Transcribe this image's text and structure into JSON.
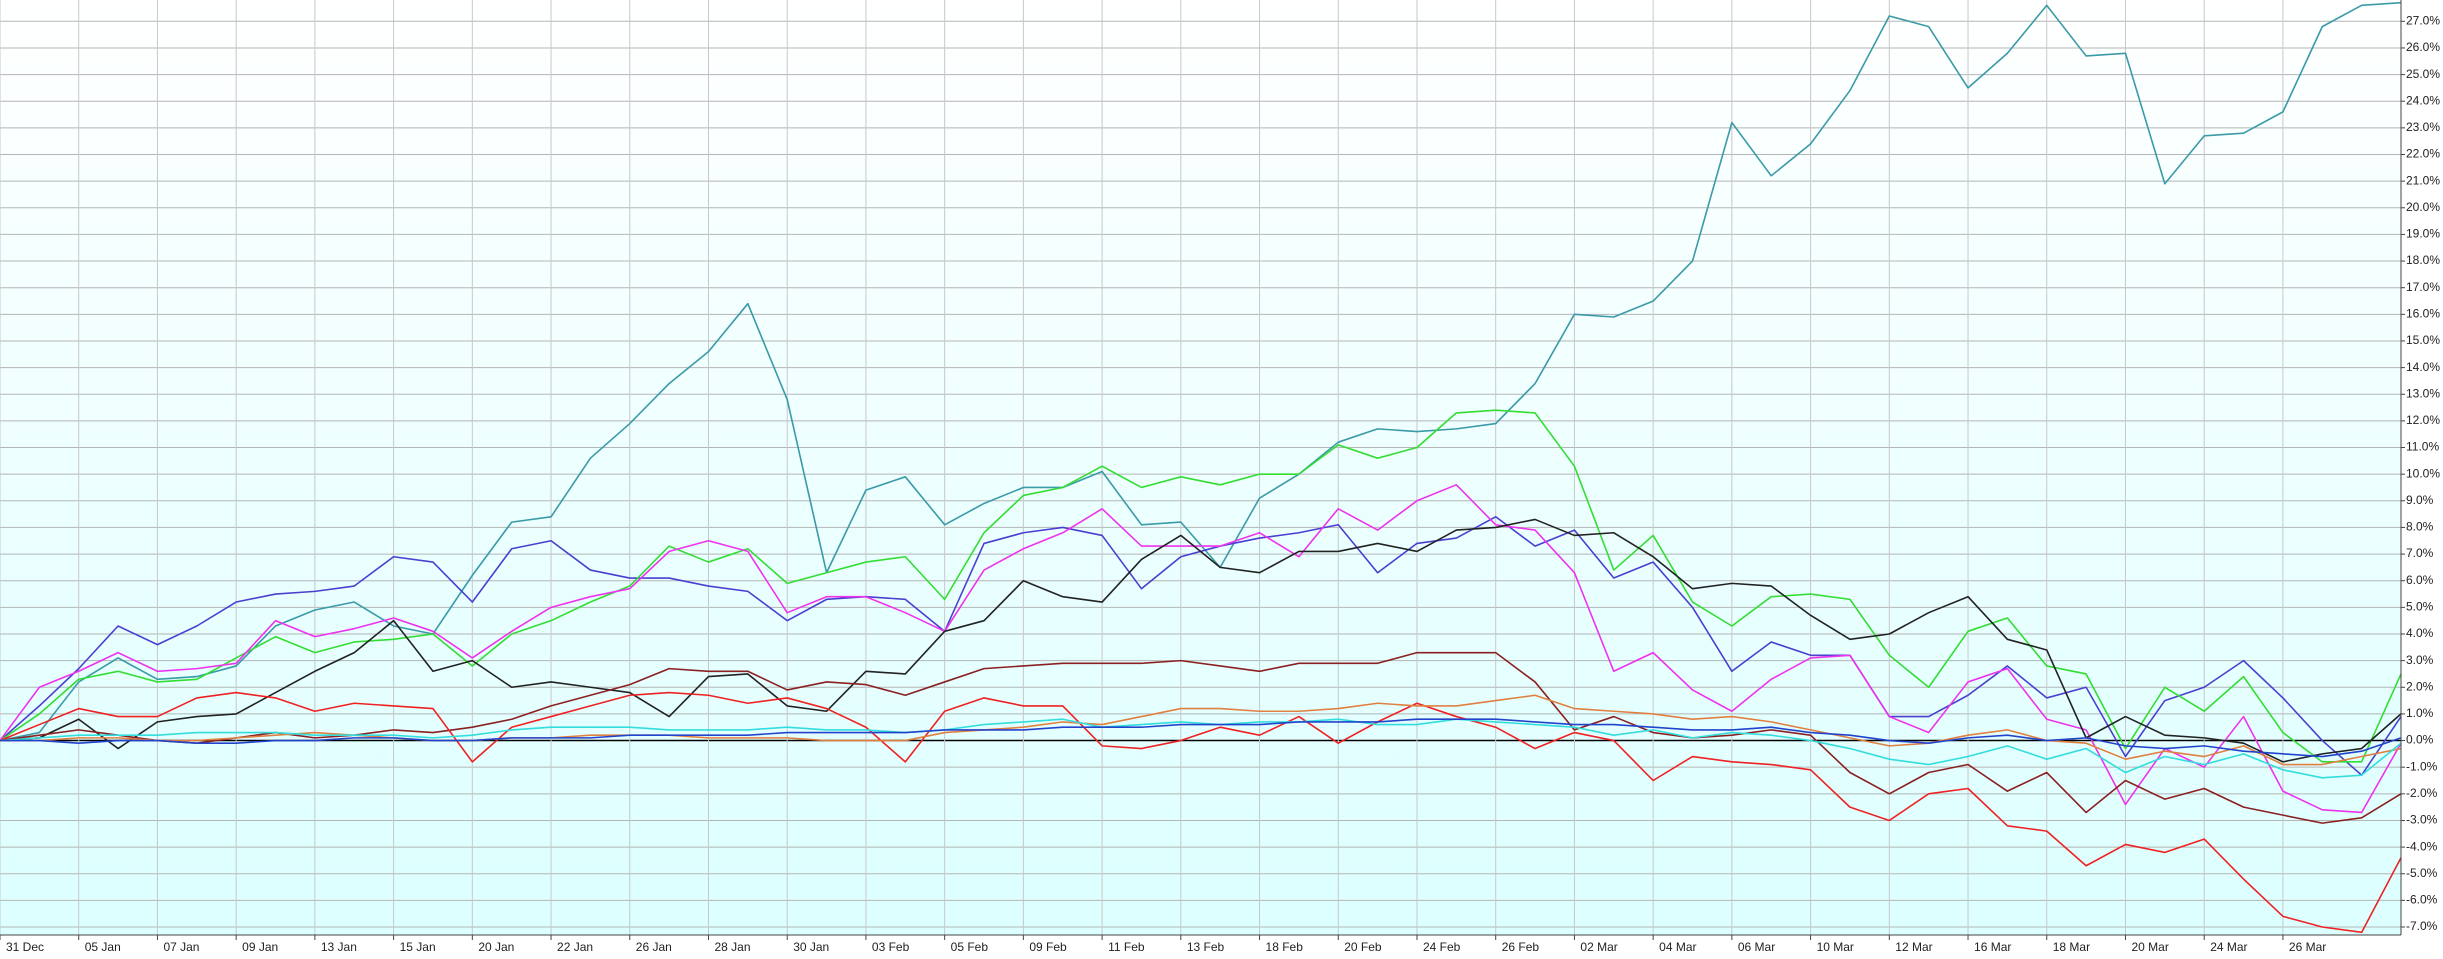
{
  "chart_data": {
    "type": "line",
    "categories": [
      "31 Dec",
      null,
      "05 Jan",
      null,
      "07 Jan",
      null,
      "09 Jan",
      null,
      "13 Jan",
      null,
      "15 Jan",
      null,
      "20 Jan",
      null,
      "22 Jan",
      null,
      "26 Jan",
      null,
      "28 Jan",
      null,
      "30 Jan",
      null,
      "03 Feb",
      null,
      "05 Feb",
      null,
      "09 Feb",
      null,
      "11 Feb",
      null,
      "13 Feb",
      null,
      "18 Feb",
      null,
      "20 Feb",
      null,
      "24 Feb",
      null,
      "26 Feb",
      null,
      "02 Mar",
      null,
      "04 Mar",
      null,
      "06 Mar",
      null,
      "10 Mar",
      null,
      "12 Mar",
      null,
      "16 Mar",
      null,
      "18 Mar",
      null,
      "20 Mar",
      null,
      "24 Mar",
      null,
      "26 Mar",
      null,
      null,
      null
    ],
    "series": [
      {
        "color": "#3a9aa8",
        "values": [
          0,
          0.3,
          2.2,
          3.1,
          2.3,
          2.4,
          2.8,
          4.3,
          4.9,
          5.2,
          4.3,
          4.0,
          6.2,
          8.2,
          8.4,
          10.6,
          11.9,
          13.4,
          14.6,
          16.4,
          12.8,
          6.3,
          9.4,
          9.9,
          8.1,
          8.9,
          9.5,
          9.5,
          10.1,
          8.1,
          8.2,
          6.5,
          9.1,
          10.0,
          11.2,
          11.7,
          11.6,
          11.7,
          11.9,
          13.4,
          16.0,
          15.9,
          16.5,
          18.0,
          23.2,
          21.2,
          22.4,
          24.4,
          27.2,
          26.8,
          24.5,
          25.8,
          27.6,
          25.7,
          25.8,
          20.9,
          22.7,
          22.8,
          23.6,
          26.8,
          27.6,
          27.7
        ]
      },
      {
        "color": "#4b3fd0",
        "values": [
          0,
          1.3,
          2.7,
          4.3,
          3.6,
          4.3,
          5.2,
          5.5,
          5.6,
          5.8,
          6.9,
          6.7,
          5.2,
          7.2,
          7.5,
          6.4,
          6.1,
          6.1,
          5.8,
          5.6,
          4.5,
          5.3,
          5.4,
          5.3,
          4.1,
          7.4,
          7.8,
          8.0,
          7.7,
          5.7,
          6.9,
          7.3,
          7.6,
          7.8,
          8.1,
          6.3,
          7.4,
          7.6,
          8.4,
          7.3,
          7.9,
          6.1,
          6.7,
          5.0,
          2.6,
          3.7,
          3.2,
          3.2,
          0.9,
          0.9,
          1.7,
          2.8,
          1.6,
          2.0,
          -0.6,
          1.5,
          2.0,
          3.0,
          1.6,
          0,
          -1.3,
          0.9
        ]
      },
      {
        "color": "#33dd33",
        "values": [
          0,
          1.0,
          2.3,
          2.6,
          2.2,
          2.3,
          3.1,
          3.9,
          3.3,
          3.7,
          3.8,
          4.0,
          2.8,
          4.0,
          4.5,
          5.2,
          5.8,
          7.3,
          6.7,
          7.2,
          5.9,
          6.3,
          6.7,
          6.9,
          5.3,
          7.8,
          9.2,
          9.5,
          10.3,
          9.5,
          9.9,
          9.6,
          10.0,
          10.0,
          11.1,
          10.6,
          11.0,
          12.3,
          12.4,
          12.3,
          10.3,
          6.4,
          7.7,
          5.2,
          4.3,
          5.4,
          5.5,
          5.3,
          3.2,
          2.0,
          4.1,
          4.6,
          2.8,
          2.5,
          -0.3,
          2.0,
          1.1,
          2.4,
          0.3,
          -0.8,
          -0.8,
          2.5
        ]
      },
      {
        "color": "#ee33ee",
        "values": [
          0,
          2.0,
          2.6,
          3.3,
          2.6,
          2.7,
          2.9,
          4.5,
          3.9,
          4.2,
          4.6,
          4.1,
          3.1,
          4.1,
          5.0,
          5.4,
          5.7,
          7.1,
          7.5,
          7.1,
          4.8,
          5.4,
          5.4,
          4.8,
          4.1,
          6.4,
          7.2,
          7.8,
          8.7,
          7.3,
          7.3,
          7.3,
          7.8,
          6.9,
          8.7,
          7.9,
          9.0,
          9.6,
          8.1,
          7.9,
          6.3,
          2.6,
          3.3,
          1.9,
          1.1,
          2.3,
          3.1,
          3.2,
          0.9,
          0.3,
          2.2,
          2.7,
          0.8,
          0.4,
          -2.4,
          -0.3,
          -1.0,
          0.9,
          -1.9,
          -2.6,
          -2.7,
          -0.1
        ]
      },
      {
        "color": "#222222",
        "values": [
          0,
          0.1,
          0.8,
          -0.3,
          0.7,
          0.9,
          1.0,
          1.8,
          2.6,
          3.3,
          4.5,
          2.6,
          3.0,
          2.0,
          2.2,
          2.0,
          1.8,
          0.9,
          2.4,
          2.5,
          1.3,
          1.1,
          2.6,
          2.5,
          4.1,
          4.5,
          6.0,
          5.4,
          5.2,
          6.8,
          7.7,
          6.5,
          6.3,
          7.1,
          7.1,
          7.4,
          7.1,
          7.9,
          8.0,
          8.3,
          7.7,
          7.8,
          6.9,
          5.7,
          5.9,
          5.8,
          4.7,
          3.8,
          4.0,
          4.8,
          5.4,
          3.8,
          3.4,
          0.1,
          0.9,
          0.2,
          0.1,
          -0.1,
          -0.8,
          -0.5,
          -0.3,
          1.0
        ]
      },
      {
        "color": "#8b2020",
        "values": [
          0,
          0.2,
          0.4,
          0.2,
          0,
          -0.1,
          0.1,
          0.3,
          0.1,
          0.2,
          0.4,
          0.3,
          0.5,
          0.8,
          1.3,
          1.7,
          2.1,
          2.7,
          2.6,
          2.6,
          1.9,
          2.2,
          2.1,
          1.7,
          2.2,
          2.7,
          2.8,
          2.9,
          2.9,
          2.9,
          3.0,
          2.8,
          2.6,
          2.9,
          2.9,
          2.9,
          3.3,
          3.3,
          3.3,
          2.2,
          0.4,
          0.9,
          0.3,
          0.1,
          0.2,
          0.4,
          0.2,
          -1.2,
          -2.0,
          -1.2,
          -0.9,
          -1.9,
          -1.2,
          -2.7,
          -1.5,
          -2.2,
          -1.8,
          -2.5,
          -2.8,
          -3.1,
          -2.9,
          -2.0
        ]
      },
      {
        "color": "#ee2222",
        "values": [
          0,
          0.6,
          1.2,
          0.9,
          0.9,
          1.6,
          1.8,
          1.6,
          1.1,
          1.4,
          1.3,
          1.2,
          -0.8,
          0.5,
          0.9,
          1.3,
          1.7,
          1.8,
          1.7,
          1.4,
          1.6,
          1.2,
          0.5,
          -0.8,
          1.1,
          1.6,
          1.3,
          1.3,
          -0.2,
          -0.3,
          0,
          0.5,
          0.2,
          0.9,
          -0.1,
          0.7,
          1.4,
          0.9,
          0.5,
          -0.3,
          0.3,
          0,
          -1.5,
          -0.6,
          -0.8,
          -0.9,
          -1.1,
          -2.5,
          -3.0,
          -2.0,
          -1.8,
          -3.2,
          -3.4,
          -4.7,
          -3.9,
          -4.2,
          -3.7,
          -5.2,
          -6.6,
          -7.0,
          -7.2,
          -4.4
        ]
      },
      {
        "color": "#e08040",
        "values": [
          0,
          0,
          0.1,
          0.1,
          0,
          0,
          0.1,
          0.2,
          0.3,
          0.2,
          0.1,
          0,
          0,
          0.1,
          0.1,
          0.2,
          0.2,
          0.2,
          0.1,
          0.1,
          0.1,
          0,
          0,
          0,
          0.3,
          0.4,
          0.5,
          0.7,
          0.6,
          0.9,
          1.2,
          1.2,
          1.1,
          1.1,
          1.2,
          1.4,
          1.3,
          1.3,
          1.5,
          1.7,
          1.2,
          1.1,
          1.0,
          0.8,
          0.9,
          0.7,
          0.4,
          0.1,
          -0.2,
          -0.1,
          0.2,
          0.4,
          0,
          -0.1,
          -0.7,
          -0.4,
          -0.6,
          -0.2,
          -0.9,
          -0.9,
          -0.6,
          -0.3
        ]
      },
      {
        "color": "#33dddd",
        "values": [
          0,
          0.1,
          0.2,
          0.2,
          0.2,
          0.3,
          0.3,
          0.3,
          0.2,
          0.2,
          0.2,
          0.1,
          0.2,
          0.4,
          0.5,
          0.5,
          0.5,
          0.4,
          0.4,
          0.4,
          0.5,
          0.4,
          0.4,
          0.3,
          0.4,
          0.6,
          0.7,
          0.8,
          0.5,
          0.6,
          0.7,
          0.6,
          0.7,
          0.7,
          0.8,
          0.6,
          0.6,
          0.8,
          0.7,
          0.6,
          0.5,
          0.2,
          0.4,
          0.1,
          0.3,
          0.2,
          0,
          -0.3,
          -0.7,
          -0.9,
          -0.6,
          -0.2,
          -0.7,
          -0.3,
          -1.2,
          -0.6,
          -0.9,
          -0.5,
          -1.1,
          -1.4,
          -1.3,
          -0.1
        ]
      },
      {
        "color": "#2244cc",
        "values": [
          0,
          0,
          -0.1,
          0,
          0,
          -0.1,
          -0.1,
          0,
          0,
          0.1,
          0.1,
          0,
          0,
          0.1,
          0.1,
          0.1,
          0.2,
          0.2,
          0.2,
          0.2,
          0.3,
          0.3,
          0.3,
          0.3,
          0.4,
          0.4,
          0.4,
          0.5,
          0.5,
          0.5,
          0.6,
          0.6,
          0.6,
          0.7,
          0.7,
          0.7,
          0.8,
          0.8,
          0.8,
          0.7,
          0.6,
          0.6,
          0.5,
          0.4,
          0.4,
          0.5,
          0.3,
          0.2,
          0,
          -0.1,
          0.1,
          0.2,
          0,
          0.1,
          -0.2,
          -0.3,
          -0.2,
          -0.4,
          -0.5,
          -0.6,
          -0.4,
          0.1
        ]
      }
    ],
    "ylim": [
      -7.3,
      27.8
    ],
    "yticks": [
      {
        "value": -7,
        "label": "-7.0%"
      },
      {
        "value": -6,
        "label": "-6.0%"
      },
      {
        "value": -5,
        "label": "-5.0%"
      },
      {
        "value": -4,
        "label": "-4.0%"
      },
      {
        "value": -3,
        "label": "-3.0%"
      },
      {
        "value": -2,
        "label": "-2.0%"
      },
      {
        "value": -1,
        "label": "-1.0%"
      },
      {
        "value": 0,
        "label": "0.0%"
      },
      {
        "value": 1,
        "label": "1.0%"
      },
      {
        "value": 2,
        "label": "2.0%"
      },
      {
        "value": 3,
        "label": "3.0%"
      },
      {
        "value": 4,
        "label": "4.0%"
      },
      {
        "value": 5,
        "label": "5.0%"
      },
      {
        "value": 6,
        "label": "6.0%"
      },
      {
        "value": 7,
        "label": "7.0%"
      },
      {
        "value": 8,
        "label": "8.0%"
      },
      {
        "value": 9,
        "label": "9.0%"
      },
      {
        "value": 10,
        "label": "10.0%"
      },
      {
        "value": 11,
        "label": "11.0%"
      },
      {
        "value": 12,
        "label": "12.0%"
      },
      {
        "value": 13,
        "label": "13.0%"
      },
      {
        "value": 14,
        "label": "14.0%"
      },
      {
        "value": 15,
        "label": "15.0%"
      },
      {
        "value": 16,
        "label": "16.0%"
      },
      {
        "value": 17,
        "label": "17.0%"
      },
      {
        "value": 18,
        "label": "18.0%"
      },
      {
        "value": 19,
        "label": "19.0%"
      },
      {
        "value": 20,
        "label": "20.0%"
      },
      {
        "value": 21,
        "label": "21.0%"
      },
      {
        "value": 22,
        "label": "22.0%"
      },
      {
        "value": 23,
        "label": "23.0%"
      },
      {
        "value": 24,
        "label": "24.0%"
      },
      {
        "value": 25,
        "label": "25.0%"
      },
      {
        "value": 26,
        "label": "26.0%"
      },
      {
        "value": 27,
        "label": "27.0%"
      }
    ],
    "grid": true
  }
}
